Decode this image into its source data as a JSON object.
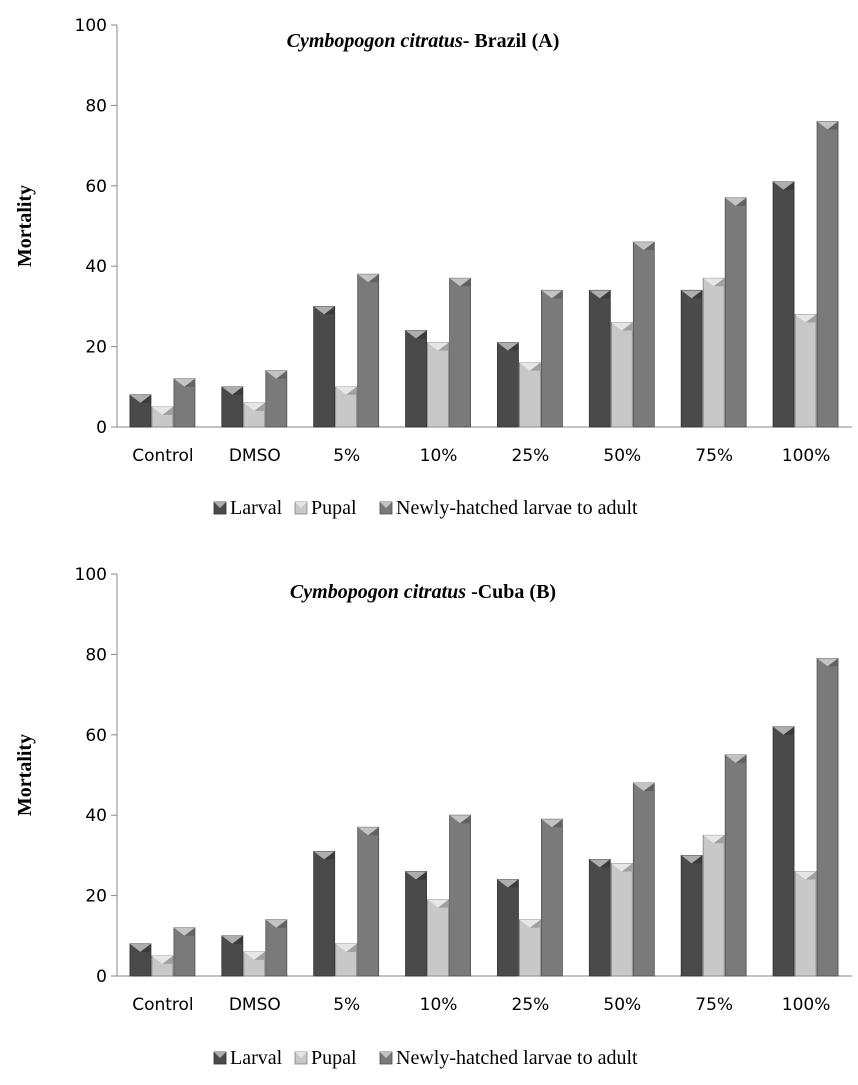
{
  "series_colors": {
    "Larval": "#4a4a4a",
    "Pupal": "#c8c8c8",
    "Newly-hatched larvae to adult": "#7a7a7a"
  },
  "chart_data": [
    {
      "type": "bar",
      "title_italic": "Cymbopogon citratus",
      "title_rest": "- Brazil   (A)",
      "ylabel": "Mortality",
      "xlabel": "",
      "ylim": [
        0,
        100
      ],
      "yticks": [
        "0",
        "20",
        "40",
        "60",
        "80",
        "100"
      ],
      "categories": [
        "Control",
        "DMSO",
        "5%",
        "10%",
        "25%",
        "50%",
        "75%",
        "100%"
      ],
      "series": [
        {
          "name": "Larval",
          "values": [
            8,
            10,
            30,
            24,
            21,
            34,
            34,
            61
          ]
        },
        {
          "name": "Pupal",
          "values": [
            5,
            6,
            10,
            21,
            16,
            26,
            37,
            28
          ]
        },
        {
          "name": "Newly-hatched larvae to adult",
          "values": [
            12,
            14,
            38,
            37,
            34,
            46,
            57,
            76
          ]
        }
      ],
      "legend": "bottom"
    },
    {
      "type": "bar",
      "title_italic": "Cymbopogon citratus",
      "title_rest": " -Cuba  (B)",
      "ylabel": "Mortality",
      "xlabel": "",
      "ylim": [
        0,
        100
      ],
      "yticks": [
        "0",
        "20",
        "40",
        "60",
        "80",
        "100"
      ],
      "categories": [
        "Control",
        "DMSO",
        "5%",
        "10%",
        "25%",
        "50%",
        "75%",
        "100%"
      ],
      "series": [
        {
          "name": "Larval",
          "values": [
            8,
            10,
            31,
            26,
            24,
            29,
            30,
            62
          ]
        },
        {
          "name": "Pupal",
          "values": [
            5,
            6,
            8,
            19,
            14,
            28,
            35,
            26
          ]
        },
        {
          "name": "Newly-hatched larvae to adult",
          "values": [
            12,
            14,
            37,
            40,
            39,
            48,
            55,
            79
          ]
        }
      ],
      "legend": "bottom"
    }
  ]
}
